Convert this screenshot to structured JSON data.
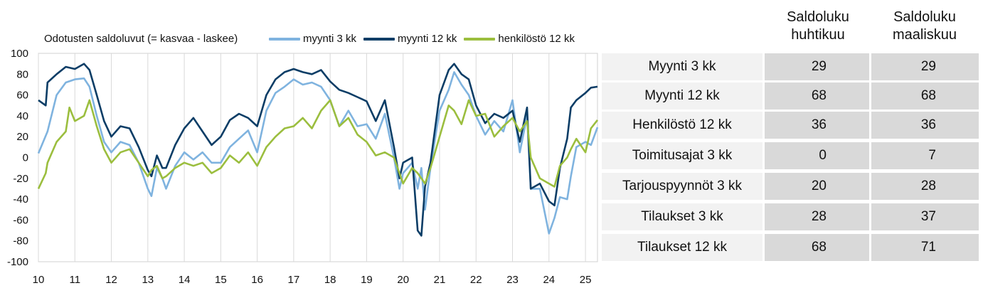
{
  "chart_data": {
    "type": "line",
    "title": "Odotusten saldoluvut (= kasvaa - laskee)",
    "xlabel": "",
    "ylabel": "",
    "ylim": [
      -100,
      100
    ],
    "yticks": [
      100,
      80,
      60,
      40,
      20,
      0,
      -20,
      -40,
      -60,
      -80,
      -100
    ],
    "xlim": [
      2010,
      2025.33
    ],
    "xticks": [
      "10",
      "11",
      "12",
      "13",
      "14",
      "15",
      "16",
      "17",
      "18",
      "19",
      "20",
      "21",
      "22",
      "23",
      "24",
      "25"
    ],
    "grid": "vertical",
    "legend": "top",
    "series": [
      {
        "name": "myynti 3 kk",
        "color": "#7fb3df",
        "points": [
          [
            2010.0,
            4
          ],
          [
            2010.25,
            25
          ],
          [
            2010.5,
            60
          ],
          [
            2010.75,
            72
          ],
          [
            2011.0,
            75
          ],
          [
            2011.25,
            76
          ],
          [
            2011.4,
            68
          ],
          [
            2011.6,
            40
          ],
          [
            2011.8,
            15
          ],
          [
            2012.0,
            5
          ],
          [
            2012.25,
            15
          ],
          [
            2012.5,
            12
          ],
          [
            2012.75,
            -5
          ],
          [
            2013.0,
            -30
          ],
          [
            2013.1,
            -37
          ],
          [
            2013.25,
            -10
          ],
          [
            2013.4,
            -20
          ],
          [
            2013.5,
            -30
          ],
          [
            2013.75,
            -8
          ],
          [
            2014.0,
            5
          ],
          [
            2014.25,
            -2
          ],
          [
            2014.5,
            5
          ],
          [
            2014.75,
            -5
          ],
          [
            2015.0,
            -5
          ],
          [
            2015.25,
            10
          ],
          [
            2015.5,
            18
          ],
          [
            2015.75,
            26
          ],
          [
            2016.0,
            5
          ],
          [
            2016.25,
            45
          ],
          [
            2016.5,
            62
          ],
          [
            2016.75,
            68
          ],
          [
            2017.0,
            75
          ],
          [
            2017.25,
            70
          ],
          [
            2017.5,
            72
          ],
          [
            2017.75,
            68
          ],
          [
            2018.0,
            55
          ],
          [
            2018.25,
            30
          ],
          [
            2018.5,
            45
          ],
          [
            2018.75,
            30
          ],
          [
            2019.0,
            32
          ],
          [
            2019.25,
            18
          ],
          [
            2019.5,
            42
          ],
          [
            2019.75,
            0
          ],
          [
            2019.9,
            -30
          ],
          [
            2020.0,
            -15
          ],
          [
            2020.25,
            -5
          ],
          [
            2020.4,
            -30
          ],
          [
            2020.5,
            -10
          ],
          [
            2020.6,
            -50
          ],
          [
            2020.75,
            -10
          ],
          [
            2021.0,
            45
          ],
          [
            2021.25,
            65
          ],
          [
            2021.4,
            82
          ],
          [
            2021.6,
            70
          ],
          [
            2021.8,
            60
          ],
          [
            2022.0,
            40
          ],
          [
            2022.25,
            22
          ],
          [
            2022.5,
            35
          ],
          [
            2022.75,
            25
          ],
          [
            2023.0,
            55
          ],
          [
            2023.2,
            5
          ],
          [
            2023.4,
            40
          ],
          [
            2023.5,
            -30
          ],
          [
            2023.75,
            -30
          ],
          [
            2024.0,
            -73
          ],
          [
            2024.15,
            -58
          ],
          [
            2024.3,
            -38
          ],
          [
            2024.5,
            -40
          ],
          [
            2024.6,
            -18
          ],
          [
            2024.75,
            10
          ],
          [
            2025.0,
            15
          ],
          [
            2025.15,
            12
          ],
          [
            2025.33,
            29
          ]
        ]
      },
      {
        "name": "myynti 12 kk",
        "color": "#0b3d66",
        "points": [
          [
            2010.0,
            55
          ],
          [
            2010.2,
            50
          ],
          [
            2010.25,
            72
          ],
          [
            2010.5,
            80
          ],
          [
            2010.75,
            87
          ],
          [
            2011.0,
            85
          ],
          [
            2011.25,
            90
          ],
          [
            2011.4,
            84
          ],
          [
            2011.6,
            60
          ],
          [
            2011.8,
            35
          ],
          [
            2012.0,
            20
          ],
          [
            2012.25,
            30
          ],
          [
            2012.5,
            28
          ],
          [
            2012.75,
            10
          ],
          [
            2013.0,
            -12
          ],
          [
            2013.1,
            -18
          ],
          [
            2013.25,
            2
          ],
          [
            2013.4,
            -10
          ],
          [
            2013.5,
            -10
          ],
          [
            2013.75,
            12
          ],
          [
            2014.0,
            28
          ],
          [
            2014.25,
            38
          ],
          [
            2014.5,
            25
          ],
          [
            2014.75,
            12
          ],
          [
            2015.0,
            20
          ],
          [
            2015.25,
            36
          ],
          [
            2015.5,
            42
          ],
          [
            2015.75,
            38
          ],
          [
            2016.0,
            30
          ],
          [
            2016.25,
            60
          ],
          [
            2016.5,
            75
          ],
          [
            2016.75,
            82
          ],
          [
            2017.0,
            85
          ],
          [
            2017.25,
            82
          ],
          [
            2017.5,
            80
          ],
          [
            2017.75,
            84
          ],
          [
            2018.0,
            73
          ],
          [
            2018.25,
            65
          ],
          [
            2018.5,
            62
          ],
          [
            2018.75,
            58
          ],
          [
            2019.0,
            54
          ],
          [
            2019.25,
            35
          ],
          [
            2019.5,
            55
          ],
          [
            2019.75,
            10
          ],
          [
            2019.9,
            -20
          ],
          [
            2020.0,
            -5
          ],
          [
            2020.25,
            0
          ],
          [
            2020.4,
            -70
          ],
          [
            2020.5,
            -75
          ],
          [
            2020.6,
            -28
          ],
          [
            2020.75,
            -5
          ],
          [
            2021.0,
            60
          ],
          [
            2021.25,
            84
          ],
          [
            2021.4,
            90
          ],
          [
            2021.6,
            80
          ],
          [
            2021.8,
            75
          ],
          [
            2022.0,
            50
          ],
          [
            2022.25,
            33
          ],
          [
            2022.5,
            42
          ],
          [
            2022.75,
            38
          ],
          [
            2023.0,
            45
          ],
          [
            2023.2,
            15
          ],
          [
            2023.4,
            48
          ],
          [
            2023.5,
            -30
          ],
          [
            2023.75,
            -25
          ],
          [
            2024.0,
            -42
          ],
          [
            2024.15,
            -46
          ],
          [
            2024.3,
            -10
          ],
          [
            2024.5,
            18
          ],
          [
            2024.6,
            48
          ],
          [
            2024.75,
            55
          ],
          [
            2025.0,
            62
          ],
          [
            2025.15,
            67
          ],
          [
            2025.33,
            68
          ]
        ]
      },
      {
        "name": "henkilöstö 12 kk",
        "color": "#9bbe3e",
        "points": [
          [
            2010.0,
            -30
          ],
          [
            2010.2,
            -15
          ],
          [
            2010.25,
            -5
          ],
          [
            2010.5,
            15
          ],
          [
            2010.75,
            25
          ],
          [
            2010.85,
            48
          ],
          [
            2011.0,
            35
          ],
          [
            2011.25,
            40
          ],
          [
            2011.4,
            55
          ],
          [
            2011.6,
            30
          ],
          [
            2011.8,
            8
          ],
          [
            2012.0,
            -5
          ],
          [
            2012.25,
            5
          ],
          [
            2012.5,
            8
          ],
          [
            2012.75,
            -5
          ],
          [
            2013.0,
            -18
          ],
          [
            2013.1,
            -12
          ],
          [
            2013.25,
            -8
          ],
          [
            2013.4,
            -20
          ],
          [
            2013.5,
            -18
          ],
          [
            2013.75,
            -10
          ],
          [
            2014.0,
            -5
          ],
          [
            2014.25,
            -8
          ],
          [
            2014.5,
            -5
          ],
          [
            2014.75,
            -15
          ],
          [
            2015.0,
            -10
          ],
          [
            2015.25,
            2
          ],
          [
            2015.5,
            -5
          ],
          [
            2015.75,
            5
          ],
          [
            2016.0,
            -8
          ],
          [
            2016.25,
            10
          ],
          [
            2016.5,
            20
          ],
          [
            2016.75,
            28
          ],
          [
            2017.0,
            30
          ],
          [
            2017.25,
            38
          ],
          [
            2017.5,
            28
          ],
          [
            2017.75,
            45
          ],
          [
            2018.0,
            55
          ],
          [
            2018.25,
            30
          ],
          [
            2018.5,
            38
          ],
          [
            2018.75,
            22
          ],
          [
            2019.0,
            15
          ],
          [
            2019.25,
            2
          ],
          [
            2019.5,
            5
          ],
          [
            2019.75,
            0
          ],
          [
            2019.9,
            -15
          ],
          [
            2020.0,
            -25
          ],
          [
            2020.25,
            -10
          ],
          [
            2020.4,
            -15
          ],
          [
            2020.5,
            -20
          ],
          [
            2020.6,
            -25
          ],
          [
            2020.75,
            -10
          ],
          [
            2021.0,
            20
          ],
          [
            2021.25,
            50
          ],
          [
            2021.4,
            45
          ],
          [
            2021.6,
            32
          ],
          [
            2021.8,
            55
          ],
          [
            2022.0,
            40
          ],
          [
            2022.25,
            42
          ],
          [
            2022.5,
            20
          ],
          [
            2022.75,
            30
          ],
          [
            2023.0,
            38
          ],
          [
            2023.2,
            25
          ],
          [
            2023.4,
            35
          ],
          [
            2023.5,
            0
          ],
          [
            2023.75,
            -20
          ],
          [
            2024.0,
            -25
          ],
          [
            2024.15,
            -28
          ],
          [
            2024.3,
            -8
          ],
          [
            2024.5,
            0
          ],
          [
            2024.6,
            8
          ],
          [
            2024.75,
            18
          ],
          [
            2025.0,
            5
          ],
          [
            2025.15,
            28
          ],
          [
            2025.33,
            36
          ]
        ]
      }
    ]
  },
  "table": {
    "headers": [
      "Saldoluku huhtikuu",
      "Saldoluku maaliskuu"
    ],
    "rows": [
      {
        "label": "Myynti 3 kk",
        "apr": "29",
        "mar": "29"
      },
      {
        "label": "Myynti 12 kk",
        "apr": "68",
        "mar": "68"
      },
      {
        "label": "Henkilöstö 12 kk",
        "apr": "36",
        "mar": "36"
      },
      {
        "label": "Toimitusajat 3 kk",
        "apr": "0",
        "mar": "7"
      },
      {
        "label": "Tarjouspyynnöt 3 kk",
        "apr": "20",
        "mar": "28"
      },
      {
        "label": "Tilaukset 3 kk",
        "apr": "28",
        "mar": "37"
      },
      {
        "label": "Tilaukset 12 kk",
        "apr": "68",
        "mar": "71"
      }
    ]
  }
}
